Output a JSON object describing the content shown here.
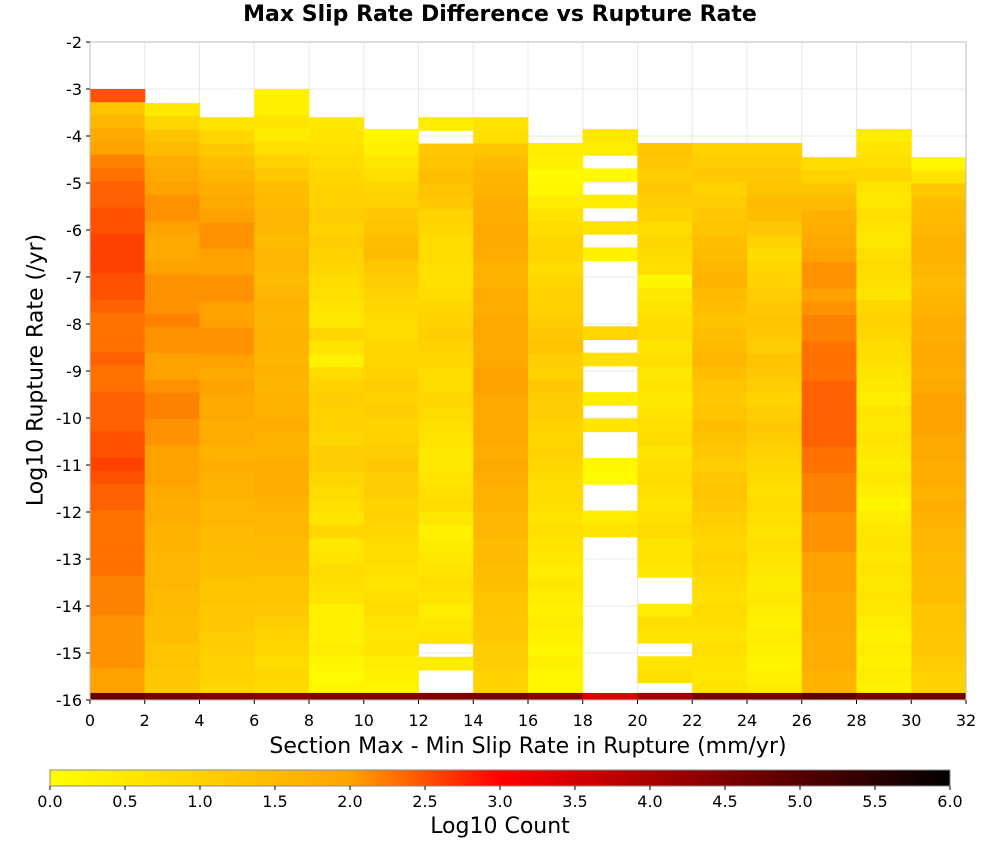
{
  "chart_data": {
    "type": "heatmap",
    "title": "Max Slip Rate Difference vs Rupture Rate",
    "xlabel": "Section Max - Min Slip Rate in Rupture (mm/yr)",
    "ylabel": "Log10 Rupture Rate (/yr)",
    "colorbar_label": "Log10 Count",
    "xlim": [
      0,
      32
    ],
    "ylim": [
      -16,
      -2
    ],
    "x_ticks": [
      "0",
      "2",
      "4",
      "6",
      "8",
      "10",
      "12",
      "14",
      "16",
      "18",
      "20",
      "22",
      "24",
      "26",
      "28",
      "30",
      "32"
    ],
    "y_ticks": [
      "-2",
      "-3",
      "-4",
      "-5",
      "-6",
      "-7",
      "-8",
      "-9",
      "-10",
      "-11",
      "-12",
      "-13",
      "-14",
      "-15",
      "-16"
    ],
    "colorbar_ticks": [
      "0.0",
      "0.5",
      "1.0",
      "1.5",
      "2.0",
      "2.5",
      "3.0",
      "3.5",
      "4.0",
      "4.5",
      "5.0",
      "5.5",
      "6.0"
    ],
    "colorbar_range": [
      0,
      6
    ],
    "colormap": [
      "#ffff00",
      "#ffa500",
      "#ff0000",
      "#000000"
    ],
    "grid": true,
    "x_bin_width": 2,
    "y_bin_height": 0.28,
    "columns": [
      {
        "x0": 0,
        "top": -3.0,
        "vals": [
          2.5,
          1.3,
          1.6,
          1.9,
          2.0,
          2.2,
          2.3,
          2.4,
          2.4,
          2.5,
          2.5,
          2.6,
          2.6,
          2.6,
          2.5,
          2.5,
          2.4,
          2.3,
          2.3,
          2.3,
          2.4,
          2.3,
          2.3,
          2.4,
          2.4,
          2.4,
          2.5,
          2.5,
          2.6,
          2.5,
          2.4,
          2.4,
          2.3,
          2.3,
          2.3,
          2.3,
          2.3,
          2.2,
          2.2,
          2.2,
          2.1,
          2.1,
          2.1,
          2.1,
          2.0,
          2.0,
          2.0
        ],
        "bottom": 4.8
      },
      {
        "x0": 2,
        "top": -3.3,
        "vals": [
          0.5,
          0.9,
          1.3,
          1.5,
          1.8,
          1.9,
          2.0,
          2.1,
          2.1,
          2.0,
          1.9,
          1.9,
          2.0,
          2.1,
          2.1,
          2.1,
          2.2,
          2.1,
          2.1,
          2.0,
          2.0,
          2.1,
          2.2,
          2.2,
          2.1,
          2.1,
          2.0,
          2.0,
          2.0,
          1.9,
          1.8,
          1.8,
          1.7,
          1.7,
          1.6,
          1.6,
          1.6,
          1.5,
          1.5,
          1.4,
          1.4,
          1.3,
          1.3,
          1.2,
          1.2
        ],
        "bottom": 4.6
      },
      {
        "x0": 4,
        "top": -3.6,
        "vals": [
          0.6,
          0.9,
          1.2,
          1.4,
          1.6,
          1.8,
          1.9,
          2.0,
          2.1,
          2.1,
          2.0,
          2.0,
          2.1,
          2.1,
          2.0,
          2.0,
          2.1,
          2.1,
          2.0,
          1.9,
          2.0,
          1.9,
          1.9,
          1.8,
          1.8,
          1.7,
          1.8,
          1.7,
          1.7,
          1.6,
          1.6,
          1.5,
          1.5,
          1.4,
          1.4,
          1.3,
          1.3,
          1.2,
          1.2,
          1.1,
          1.1,
          1.0,
          1.0,
          0.9
        ],
        "bottom": 4.5
      },
      {
        "x0": 6,
        "top": -3.0,
        "vals": [
          0.3,
          0.3,
          0.6,
          0.4,
          0.7,
          1.0,
          1.2,
          1.4,
          1.5,
          1.6,
          1.6,
          1.5,
          1.6,
          1.6,
          1.5,
          1.6,
          1.7,
          1.6,
          1.7,
          1.7,
          1.6,
          1.7,
          1.6,
          1.7,
          1.7,
          1.8,
          1.7,
          1.7,
          1.8,
          1.8,
          1.8,
          1.7,
          1.6,
          1.6,
          1.5,
          1.5,
          1.4,
          1.3,
          1.3,
          1.2,
          1.1,
          1.0,
          0.9,
          0.8,
          0.9,
          0.8,
          0.8
        ],
        "bottom": 4.4
      },
      {
        "x0": 8,
        "top": -3.6,
        "vals": [
          0.5,
          0.6,
          0.7,
          0.8,
          0.9,
          1.0,
          1.0,
          1.1,
          1.0,
          1.1,
          1.0,
          0.9,
          0.8,
          0.7,
          0.6,
          0.5,
          0.9,
          0.6,
          0.3,
          0.8,
          1.0,
          1.1,
          1.0,
          1.0,
          0.9,
          1.1,
          1.1,
          0.9,
          0.8,
          0.7,
          0.6,
          0.9,
          0.5,
          0.6,
          0.8,
          0.7,
          0.6,
          0.3,
          0.3,
          0.3,
          0.4,
          0.2,
          0.1,
          0.2,
          0.1
        ],
        "bottom": 4.5
      },
      {
        "x0": 10,
        "top": -3.85,
        "vals": [
          0.2,
          0.3,
          0.5,
          0.7,
          0.9,
          1.0,
          1.2,
          1.3,
          1.4,
          1.5,
          1.2,
          1.1,
          1.0,
          0.9,
          0.8,
          0.8,
          0.9,
          0.9,
          1.0,
          1.1,
          1.0,
          1.1,
          1.0,
          1.0,
          1.1,
          1.2,
          1.1,
          1.1,
          1.0,
          1.0,
          0.9,
          0.8,
          0.8,
          0.7,
          0.6,
          0.7,
          0.8,
          0.6,
          0.5,
          0.6,
          0.4,
          0.3,
          0.2,
          0.3
        ],
        "bottom": 4.5
      },
      {
        "x0": 12,
        "top": -3.6,
        "vals": [
          0.4,
          null,
          1.2,
          1.3,
          1.4,
          1.3,
          1.2,
          1.0,
          0.9,
          0.8,
          0.8,
          0.7,
          0.7,
          0.8,
          0.9,
          1.0,
          1.1,
          1.0,
          0.9,
          0.8,
          0.8,
          0.9,
          0.8,
          0.7,
          0.6,
          0.5,
          0.5,
          0.6,
          0.7,
          0.8,
          0.5,
          0.3,
          0.4,
          0.5,
          0.6,
          0.7,
          0.6,
          0.4,
          0.5,
          0.6,
          null,
          0.4,
          null,
          null,
          null
        ],
        "bottom": 4.5
      },
      {
        "x0": 14,
        "top": -3.6,
        "vals": [
          0.6,
          0.7,
          1.3,
          1.5,
          1.6,
          1.7,
          1.8,
          1.8,
          1.9,
          1.9,
          1.8,
          1.7,
          1.7,
          1.8,
          1.8,
          1.9,
          1.9,
          1.9,
          1.9,
          2.0,
          2.0,
          1.9,
          1.9,
          1.9,
          1.9,
          1.8,
          1.9,
          1.8,
          1.7,
          1.7,
          1.6,
          1.6,
          1.5,
          1.5,
          1.4,
          1.4,
          1.3,
          1.3,
          1.2,
          1.2,
          1.1,
          1.1,
          1.0,
          1.0,
          0.9
        ],
        "bottom": 4.6
      },
      {
        "x0": 16,
        "top": -4.15,
        "vals": [
          0.4,
          0.3,
          0.1,
          0.2,
          0.4,
          0.6,
          0.8,
          0.9,
          0.9,
          0.8,
          0.9,
          1.0,
          1.0,
          1.1,
          1.2,
          1.3,
          1.1,
          1.0,
          1.2,
          1.1,
          1.1,
          1.0,
          0.9,
          1.0,
          0.9,
          0.8,
          0.8,
          0.7,
          0.6,
          0.7,
          0.6,
          0.5,
          0.4,
          0.5,
          0.4,
          0.3,
          0.4,
          0.3,
          0.2,
          0.3,
          0.2,
          0.2,
          0.3
        ],
        "bottom": 4.4
      },
      {
        "x0": 18,
        "top": -3.85,
        "vals": [
          0.5,
          0.4,
          null,
          0.1,
          null,
          0.4,
          null,
          0.6,
          null,
          0.3,
          null,
          null,
          null,
          null,
          null,
          0.9,
          null,
          0.7,
          null,
          null,
          0.4,
          null,
          0.6,
          null,
          null,
          0.2,
          0.1,
          null,
          null,
          0.4,
          0.6,
          null,
          null,
          null,
          null,
          null,
          null,
          null,
          null,
          null,
          null,
          null,
          null,
          null
        ],
        "bottom": 3.4
      },
      {
        "x0": 20,
        "top": -4.15,
        "vals": [
          1.3,
          1.2,
          1.1,
          1.2,
          1.1,
          1.0,
          0.8,
          0.9,
          0.8,
          0.7,
          0.2,
          0.5,
          0.6,
          0.7,
          0.8,
          0.6,
          0.7,
          0.5,
          0.6,
          0.5,
          0.6,
          0.7,
          0.8,
          0.6,
          0.7,
          0.8,
          0.7,
          0.6,
          0.7,
          0.8,
          0.6,
          0.6,
          0.5,
          null,
          null,
          0.4,
          0.7,
          0.6,
          null,
          0.6,
          0.7,
          null,
          0.3,
          0.4,
          0.5,
          null,
          0.2,
          null
        ],
        "bottom": 4.1
      },
      {
        "x0": 22,
        "top": -4.15,
        "vals": [
          1.0,
          1.1,
          1.2,
          1.0,
          1.1,
          1.2,
          1.3,
          1.4,
          1.5,
          1.6,
          1.7,
          1.5,
          1.4,
          1.3,
          1.4,
          1.5,
          1.6,
          1.4,
          1.3,
          1.2,
          1.3,
          1.4,
          1.3,
          1.2,
          1.1,
          1.2,
          1.3,
          1.2,
          1.1,
          1.0,
          0.9,
          1.0,
          0.9,
          0.8,
          0.7,
          0.8,
          0.7,
          0.6,
          0.7,
          0.6,
          0.5,
          0.6,
          0.5,
          0.4,
          0.5
        ],
        "bottom": 4.6
      },
      {
        "x0": 24,
        "top": -4.15,
        "vals": [
          1.0,
          1.1,
          1.2,
          1.3,
          1.5,
          1.4,
          1.2,
          1.0,
          0.8,
          0.9,
          1.0,
          1.1,
          1.2,
          1.3,
          1.2,
          1.1,
          1.3,
          1.2,
          1.1,
          1.0,
          1.1,
          1.2,
          1.1,
          1.0,
          0.9,
          0.8,
          0.7,
          0.8,
          0.7,
          0.6,
          0.7,
          0.6,
          0.5,
          0.4,
          0.5,
          0.4,
          0.3,
          0.4,
          0.3,
          0.2,
          0.3,
          0.4
        ],
        "bottom": 4.6
      },
      {
        "x0": 26,
        "top": -4.45,
        "vals": [
          0.8,
          1.0,
          1.3,
          1.5,
          1.7,
          1.8,
          1.9,
          2.0,
          2.1,
          2.1,
          2.0,
          2.1,
          2.2,
          2.2,
          2.3,
          2.3,
          2.3,
          2.4,
          2.4,
          2.4,
          2.4,
          2.4,
          2.3,
          2.3,
          2.2,
          2.2,
          2.2,
          2.1,
          2.1,
          2.1,
          2.0,
          2.0,
          2.0,
          1.9,
          1.9,
          1.9,
          1.8,
          1.8,
          1.8,
          1.7,
          1.7,
          1.7,
          1.6
        ],
        "bottom": 4.9
      },
      {
        "x0": 28,
        "top": -3.85,
        "vals": [
          0.4,
          0.6,
          0.7,
          0.9,
          0.6,
          0.5,
          0.7,
          0.6,
          0.5,
          0.7,
          0.8,
          0.7,
          0.6,
          0.9,
          1.0,
          0.9,
          0.8,
          0.7,
          0.6,
          0.5,
          0.4,
          0.6,
          0.5,
          0.6,
          0.5,
          0.4,
          0.5,
          0.4,
          0.2,
          0.4,
          0.5,
          0.6,
          0.5,
          0.6,
          0.5,
          0.6,
          0.5,
          0.4,
          0.3,
          0.4,
          0.3,
          0.4,
          0.3,
          0.2
        ],
        "bottom": 4.6
      },
      {
        "x0": 30,
        "top": -4.45,
        "vals": [
          0.2,
          0.6,
          1.2,
          1.4,
          1.5,
          1.6,
          1.7,
          1.7,
          1.6,
          1.5,
          1.6,
          1.7,
          1.8,
          1.8,
          1.9,
          1.9,
          1.8,
          1.9,
          2.0,
          2.0,
          2.0,
          1.9,
          1.9,
          1.8,
          1.8,
          1.7,
          1.8,
          1.7,
          1.6,
          1.6,
          1.5,
          1.5,
          1.4,
          1.4,
          1.3,
          1.3,
          1.2,
          1.2,
          1.1,
          1.0,
          1.0,
          0.9,
          1.0
        ],
        "bottom": 4.7
      }
    ]
  }
}
